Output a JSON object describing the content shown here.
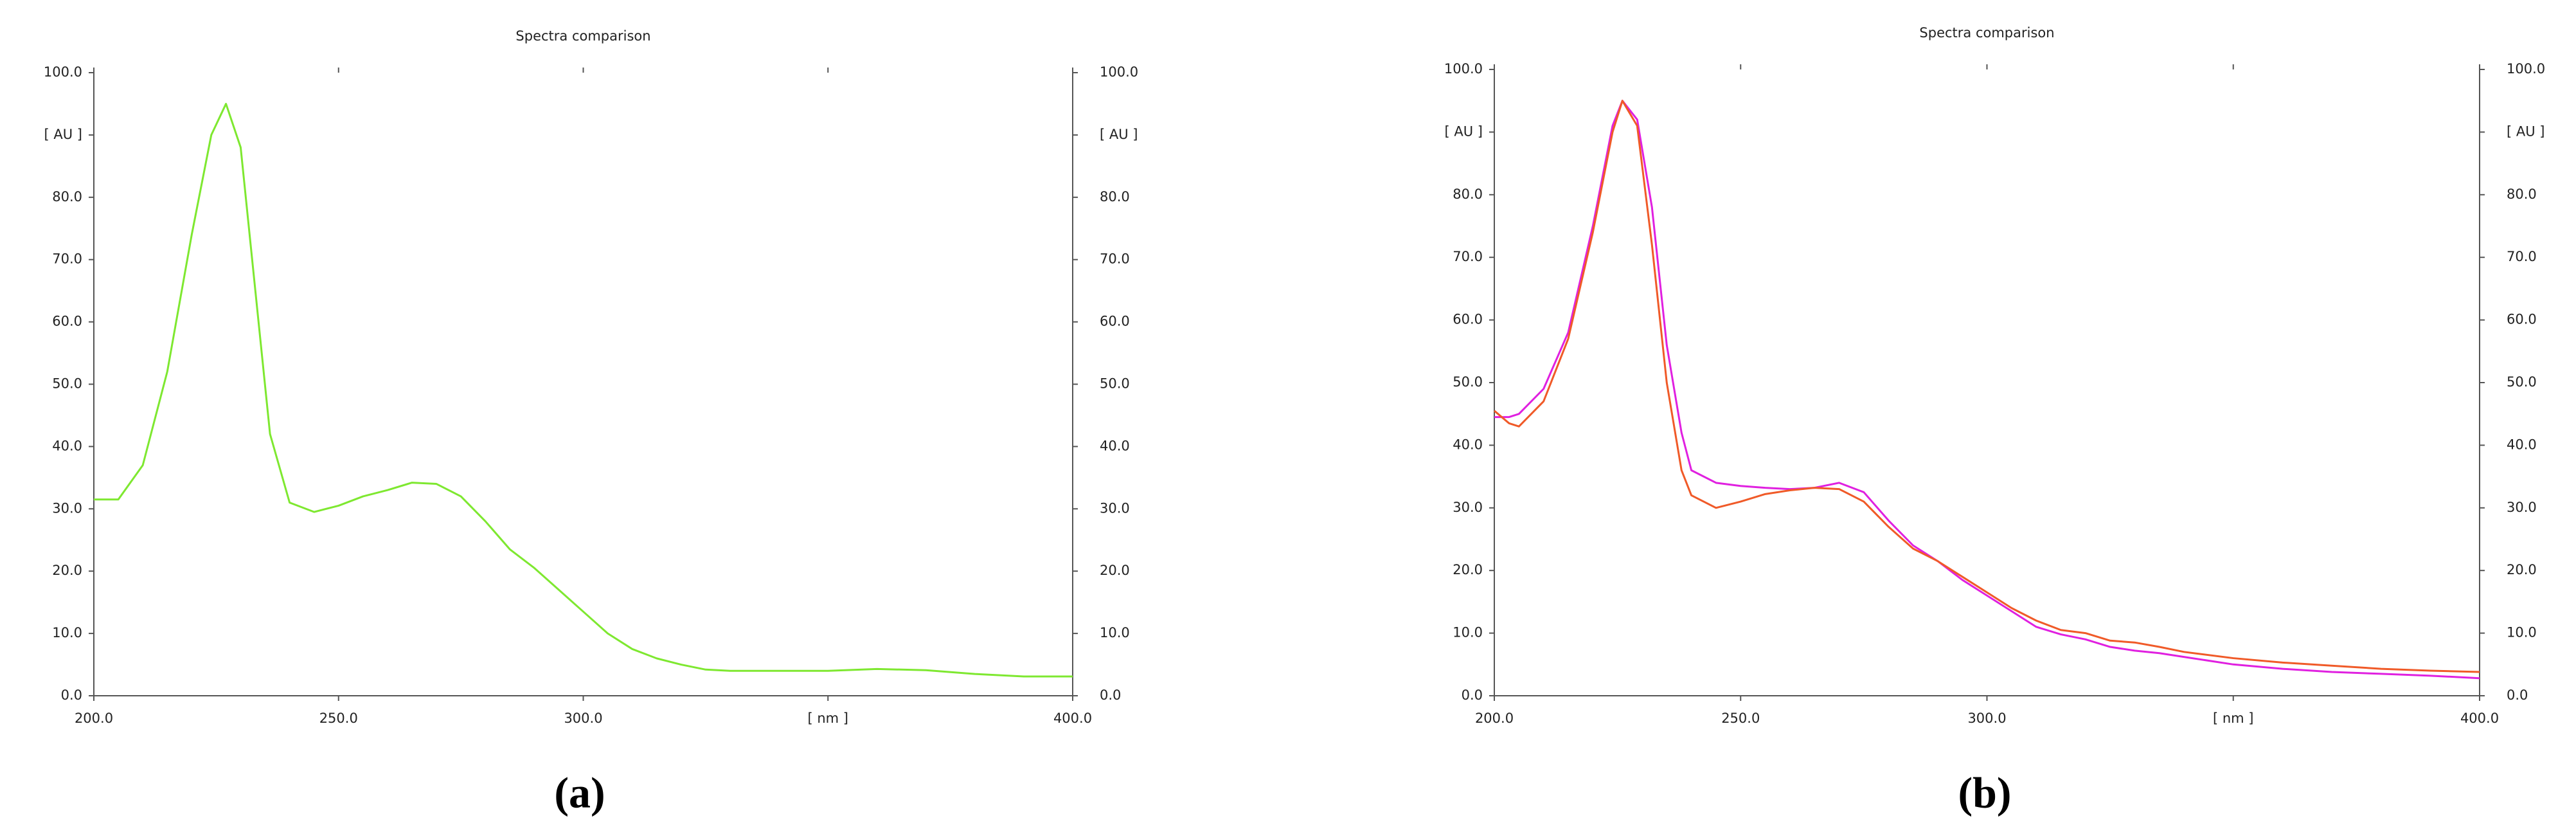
{
  "chart_data": [
    {
      "type": "line",
      "title": "Spectra comparison",
      "caption": "(a)",
      "x": [
        200,
        205,
        210,
        215,
        220,
        224,
        227,
        230,
        233,
        236,
        240,
        245,
        250,
        255,
        260,
        265,
        270,
        275,
        280,
        285,
        290,
        295,
        300,
        305,
        310,
        315,
        320,
        325,
        330,
        340,
        350,
        360,
        370,
        380,
        390,
        400
      ],
      "series": [
        {
          "name": null,
          "color": "#7ee830",
          "values": [
            31.5,
            31.5,
            37,
            52,
            74,
            90,
            95,
            88,
            65,
            42,
            31,
            29.5,
            30.5,
            32,
            33,
            34.2,
            34,
            32,
            28,
            23.5,
            20.5,
            17,
            13.5,
            10,
            7.5,
            6,
            5,
            4.2,
            4,
            4,
            4,
            4.3,
            4.1,
            3.5,
            3.1,
            3.1
          ]
        }
      ],
      "xlim": [
        200,
        400
      ],
      "xticks": [
        {
          "value": 200,
          "label": "200.0"
        },
        {
          "value": 250,
          "label": "250.0"
        },
        {
          "value": 300,
          "label": "300.0"
        },
        {
          "value": 350,
          "label": "[ nm ]"
        },
        {
          "value": 400,
          "label": "400.0"
        }
      ],
      "ylim": [
        0,
        100
      ],
      "yticks": [
        {
          "value": 0,
          "label": "0.0"
        },
        {
          "value": 10,
          "label": "10.0"
        },
        {
          "value": 20,
          "label": "20.0"
        },
        {
          "value": 30,
          "label": "30.0"
        },
        {
          "value": 40,
          "label": "40.0"
        },
        {
          "value": 50,
          "label": "50.0"
        },
        {
          "value": 60,
          "label": "60.0"
        },
        {
          "value": 70,
          "label": "70.0"
        },
        {
          "value": 80,
          "label": "80.0"
        },
        {
          "value": 90,
          "label": "[ AU ]"
        },
        {
          "value": 100,
          "label": "100.0"
        }
      ],
      "y2lim": [
        0,
        100
      ],
      "y2ticks": [
        {
          "value": 0,
          "label": "0.0"
        },
        {
          "value": 10,
          "label": "10.0"
        },
        {
          "value": 20,
          "label": "20.0"
        },
        {
          "value": 30,
          "label": "30.0"
        },
        {
          "value": 40,
          "label": "40.0"
        },
        {
          "value": 50,
          "label": "50.0"
        },
        {
          "value": 60,
          "label": "60.0"
        },
        {
          "value": 70,
          "label": "70.0"
        },
        {
          "value": 80,
          "label": "80.0"
        },
        {
          "value": 90,
          "label": "[ AU ]"
        },
        {
          "value": 100,
          "label": "100.0"
        }
      ]
    },
    {
      "type": "line",
      "title": "Spectra comparison",
      "caption": "(b)",
      "x": [
        200,
        203,
        205,
        210,
        215,
        220,
        224,
        226,
        229,
        232,
        235,
        238,
        240,
        245,
        250,
        255,
        260,
        265,
        270,
        275,
        280,
        285,
        290,
        295,
        300,
        305,
        310,
        315,
        320,
        325,
        330,
        335,
        340,
        350,
        360,
        370,
        380,
        390,
        400
      ],
      "series": [
        {
          "name": null,
          "color": "#e020e0",
          "values": [
            44.5,
            44.5,
            45,
            49,
            58,
            75,
            91,
            95,
            92,
            78,
            56,
            42,
            36,
            34,
            33.5,
            33.2,
            33,
            33.2,
            34,
            32.5,
            28,
            24,
            21.5,
            18.5,
            16,
            13.5,
            11,
            9.8,
            9,
            7.8,
            7.2,
            6.8,
            6.2,
            5,
            4.3,
            3.8,
            3.5,
            3.2,
            2.8
          ]
        },
        {
          "name": null,
          "color": "#f05a28",
          "values": [
            45.5,
            43.5,
            43,
            47,
            57,
            74,
            90,
            95,
            91,
            72,
            50,
            36,
            32,
            30,
            31,
            32.2,
            32.8,
            33.2,
            33,
            31,
            27,
            23.5,
            21.5,
            19,
            16.5,
            14,
            12,
            10.5,
            10,
            8.8,
            8.5,
            7.8,
            7,
            6,
            5.3,
            4.8,
            4.3,
            4,
            3.8
          ]
        }
      ],
      "xlim": [
        200,
        400
      ],
      "xticks": [
        {
          "value": 200,
          "label": "200.0"
        },
        {
          "value": 250,
          "label": "250.0"
        },
        {
          "value": 300,
          "label": "300.0"
        },
        {
          "value": 350,
          "label": "[ nm ]"
        },
        {
          "value": 400,
          "label": "400.0"
        }
      ],
      "ylim": [
        0,
        100
      ],
      "yticks": [
        {
          "value": 0,
          "label": "0.0"
        },
        {
          "value": 10,
          "label": "10.0"
        },
        {
          "value": 20,
          "label": "20.0"
        },
        {
          "value": 30,
          "label": "30.0"
        },
        {
          "value": 40,
          "label": "40.0"
        },
        {
          "value": 50,
          "label": "50.0"
        },
        {
          "value": 60,
          "label": "60.0"
        },
        {
          "value": 70,
          "label": "70.0"
        },
        {
          "value": 80,
          "label": "80.0"
        },
        {
          "value": 90,
          "label": "[ AU ]"
        },
        {
          "value": 100,
          "label": "100.0"
        }
      ],
      "y2lim": [
        0,
        100
      ],
      "y2ticks": [
        {
          "value": 0,
          "label": "0.0"
        },
        {
          "value": 10,
          "label": "10.0"
        },
        {
          "value": 20,
          "label": "20.0"
        },
        {
          "value": 30,
          "label": "30.0"
        },
        {
          "value": 40,
          "label": "40.0"
        },
        {
          "value": 50,
          "label": "50.0"
        },
        {
          "value": 60,
          "label": "60.0"
        },
        {
          "value": 70,
          "label": "70.0"
        },
        {
          "value": 80,
          "label": "80.0"
        },
        {
          "value": 90,
          "label": "[ AU ]"
        },
        {
          "value": 100,
          "label": "100.0"
        }
      ]
    }
  ]
}
